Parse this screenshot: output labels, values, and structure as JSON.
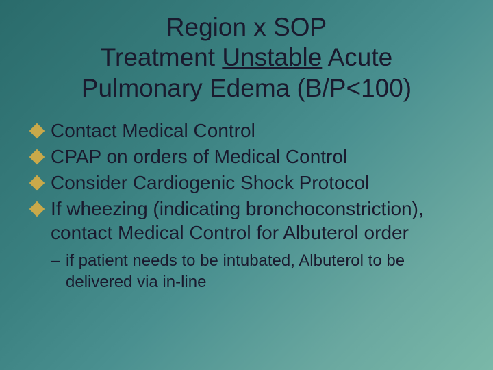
{
  "slide": {
    "title_line1": "Region x SOP",
    "title_line2a": "Treatment ",
    "title_line2_underlined": "Unstable",
    "title_line2b": " Acute",
    "title_line3": "Pulmonary Edema (B/P<100)",
    "title_fontsize": 37,
    "title_color": "#1a1a2e",
    "bullets": [
      {
        "text": "Contact Medical Control"
      },
      {
        "text": "CPAP on orders of Medical Control"
      },
      {
        "text": "Consider Cardiogenic Shock Protocol"
      },
      {
        "text": "If wheezing (indicating bronchoconstriction), contact Medical Control for Albuterol order"
      }
    ],
    "bullet_fontsize": 28,
    "bullet_marker_color": "#c9a94a",
    "sub_bullets": [
      {
        "marker": "–",
        "text": "if patient needs to be intubated, Albuterol to be delivered via in-line"
      }
    ],
    "sub_bullet_fontsize": 24,
    "background_gradient": [
      "#2a6b6b",
      "#3a8080",
      "#4a9090",
      "#6aa8a0",
      "#7ab8a8"
    ],
    "text_color": "#1a1a2e"
  }
}
